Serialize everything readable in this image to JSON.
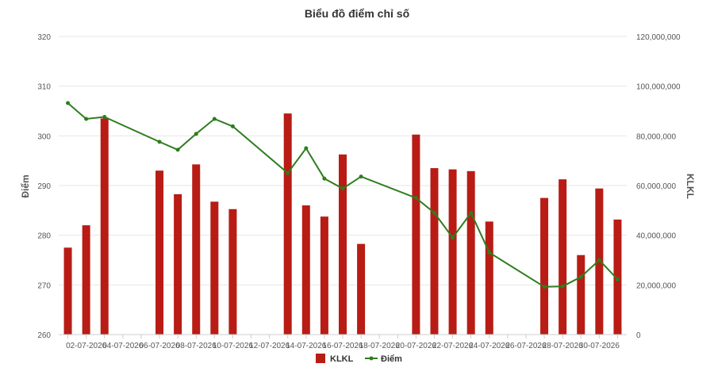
{
  "chart_data": {
    "type": "bar+line",
    "title": "Biểu đồ điểm chỉ số",
    "ylabel_left": "Điểm",
    "ylabel_right": "KLKL",
    "y_left_range": [
      260,
      320
    ],
    "y_left_ticks": [
      "260",
      "270",
      "280",
      "290",
      "300",
      "310",
      "320"
    ],
    "y_right_range": [
      0,
      120000000
    ],
    "y_right_ticks": [
      "0",
      "20,000,000",
      "40,000,000",
      "60,000,000",
      "80,000,000",
      "100,000,000",
      "120,000,000"
    ],
    "x_tick_labels": [
      "02-07-2026",
      "04-07-2026",
      "06-07-2026",
      "08-07-2026",
      "10-07-2026",
      "12-07-2026",
      "14-07-2026",
      "16-07-2026",
      "18-07-2026",
      "20-07-2026",
      "22-07-2026",
      "24-07-2026",
      "26-07-2026",
      "28-07-2026",
      "30-07-2026"
    ],
    "grid": true,
    "legend_position": "bottom",
    "colors": {
      "bar": "#b81c15",
      "line": "#2e7d1e"
    },
    "series": [
      {
        "name": "KLKL",
        "type": "bar",
        "axis": "right",
        "data": [
          {
            "day": 1,
            "value": 35000000
          },
          {
            "day": 2,
            "value": 44000000
          },
          {
            "day": 3,
            "value": 87000000
          },
          {
            "day": 6,
            "value": 66000000
          },
          {
            "day": 7,
            "value": 56500000
          },
          {
            "day": 8,
            "value": 68500000
          },
          {
            "day": 9,
            "value": 53500000
          },
          {
            "day": 10,
            "value": 50500000
          },
          {
            "day": 13,
            "value": 89000000
          },
          {
            "day": 14,
            "value": 52000000
          },
          {
            "day": 15,
            "value": 47500000
          },
          {
            "day": 16,
            "value": 72500000
          },
          {
            "day": 17,
            "value": 36500000
          },
          {
            "day": 20,
            "value": 80500000
          },
          {
            "day": 21,
            "value": 67000000
          },
          {
            "day": 22,
            "value": 66500000
          },
          {
            "day": 23,
            "value": 65800000
          },
          {
            "day": 24,
            "value": 45500000
          },
          {
            "day": 27,
            "value": 55000000
          },
          {
            "day": 28,
            "value": 62500000
          },
          {
            "day": 29,
            "value": 32000000
          },
          {
            "day": 30,
            "value": 58800000
          },
          {
            "day": 31,
            "value": 46300000
          }
        ]
      },
      {
        "name": "Điểm",
        "type": "line",
        "axis": "left",
        "data": [
          {
            "day": 1,
            "value": 306.6
          },
          {
            "day": 2,
            "value": 303.4
          },
          {
            "day": 3,
            "value": 303.8
          },
          {
            "day": 6,
            "value": 298.8
          },
          {
            "day": 7,
            "value": 297.2
          },
          {
            "day": 8,
            "value": 300.4
          },
          {
            "day": 9,
            "value": 303.4
          },
          {
            "day": 10,
            "value": 301.9
          },
          {
            "day": 13,
            "value": 292.5
          },
          {
            "day": 14,
            "value": 297.5
          },
          {
            "day": 15,
            "value": 291.4
          },
          {
            "day": 16,
            "value": 289.4
          },
          {
            "day": 17,
            "value": 291.8
          },
          {
            "day": 20,
            "value": 287.5
          },
          {
            "day": 21,
            "value": 284.5
          },
          {
            "day": 22,
            "value": 279.5
          },
          {
            "day": 23,
            "value": 284.5
          },
          {
            "day": 24,
            "value": 276.5
          },
          {
            "day": 27,
            "value": 269.6
          },
          {
            "day": 28,
            "value": 269.7
          },
          {
            "day": 29,
            "value": 271.6
          },
          {
            "day": 30,
            "value": 275.0
          },
          {
            "day": 31,
            "value": 271.1
          }
        ]
      }
    ]
  }
}
